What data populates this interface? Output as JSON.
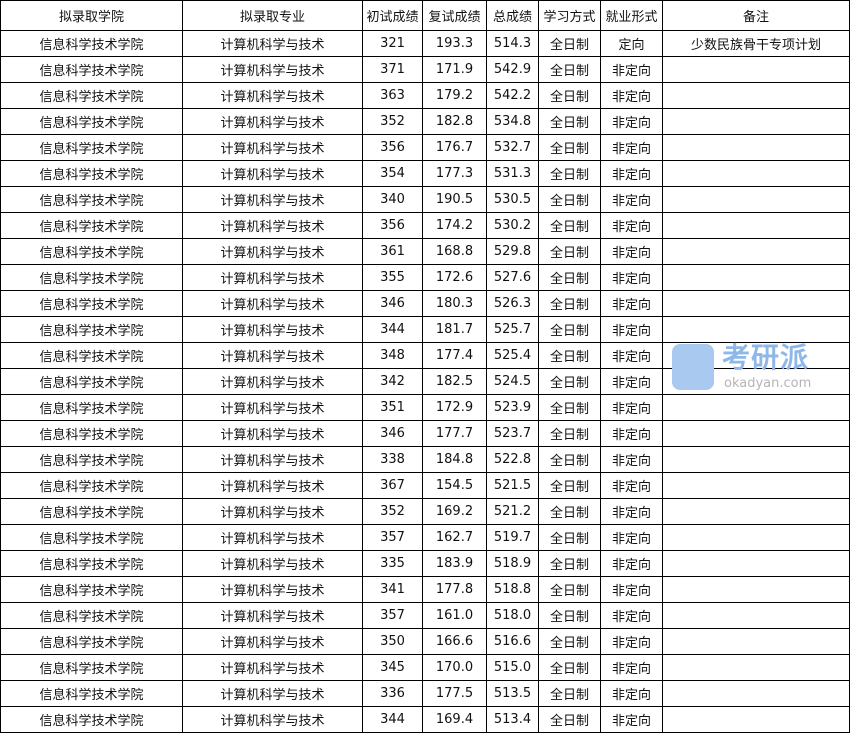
{
  "table": {
    "headers": [
      "拟录取学院",
      "拟录取专业",
      "初试成绩",
      "复试成绩",
      "总成绩",
      "学习方式",
      "就业形式",
      "备注"
    ],
    "rows": [
      [
        "信息科学技术学院",
        "计算机科学与技术",
        "321",
        "193.3",
        "514.3",
        "全日制",
        "定向",
        "少数民族骨干专项计划"
      ],
      [
        "信息科学技术学院",
        "计算机科学与技术",
        "371",
        "171.9",
        "542.9",
        "全日制",
        "非定向",
        ""
      ],
      [
        "信息科学技术学院",
        "计算机科学与技术",
        "363",
        "179.2",
        "542.2",
        "全日制",
        "非定向",
        ""
      ],
      [
        "信息科学技术学院",
        "计算机科学与技术",
        "352",
        "182.8",
        "534.8",
        "全日制",
        "非定向",
        ""
      ],
      [
        "信息科学技术学院",
        "计算机科学与技术",
        "356",
        "176.7",
        "532.7",
        "全日制",
        "非定向",
        ""
      ],
      [
        "信息科学技术学院",
        "计算机科学与技术",
        "354",
        "177.3",
        "531.3",
        "全日制",
        "非定向",
        ""
      ],
      [
        "信息科学技术学院",
        "计算机科学与技术",
        "340",
        "190.5",
        "530.5",
        "全日制",
        "非定向",
        ""
      ],
      [
        "信息科学技术学院",
        "计算机科学与技术",
        "356",
        "174.2",
        "530.2",
        "全日制",
        "非定向",
        ""
      ],
      [
        "信息科学技术学院",
        "计算机科学与技术",
        "361",
        "168.8",
        "529.8",
        "全日制",
        "非定向",
        ""
      ],
      [
        "信息科学技术学院",
        "计算机科学与技术",
        "355",
        "172.6",
        "527.6",
        "全日制",
        "非定向",
        ""
      ],
      [
        "信息科学技术学院",
        "计算机科学与技术",
        "346",
        "180.3",
        "526.3",
        "全日制",
        "非定向",
        ""
      ],
      [
        "信息科学技术学院",
        "计算机科学与技术",
        "344",
        "181.7",
        "525.7",
        "全日制",
        "非定向",
        ""
      ],
      [
        "信息科学技术学院",
        "计算机科学与技术",
        "348",
        "177.4",
        "525.4",
        "全日制",
        "非定向",
        ""
      ],
      [
        "信息科学技术学院",
        "计算机科学与技术",
        "342",
        "182.5",
        "524.5",
        "全日制",
        "非定向",
        ""
      ],
      [
        "信息科学技术学院",
        "计算机科学与技术",
        "351",
        "172.9",
        "523.9",
        "全日制",
        "非定向",
        ""
      ],
      [
        "信息科学技术学院",
        "计算机科学与技术",
        "346",
        "177.7",
        "523.7",
        "全日制",
        "非定向",
        ""
      ],
      [
        "信息科学技术学院",
        "计算机科学与技术",
        "338",
        "184.8",
        "522.8",
        "全日制",
        "非定向",
        ""
      ],
      [
        "信息科学技术学院",
        "计算机科学与技术",
        "367",
        "154.5",
        "521.5",
        "全日制",
        "非定向",
        ""
      ],
      [
        "信息科学技术学院",
        "计算机科学与技术",
        "352",
        "169.2",
        "521.2",
        "全日制",
        "非定向",
        ""
      ],
      [
        "信息科学技术学院",
        "计算机科学与技术",
        "357",
        "162.7",
        "519.7",
        "全日制",
        "非定向",
        ""
      ],
      [
        "信息科学技术学院",
        "计算机科学与技术",
        "335",
        "183.9",
        "518.9",
        "全日制",
        "非定向",
        ""
      ],
      [
        "信息科学技术学院",
        "计算机科学与技术",
        "341",
        "177.8",
        "518.8",
        "全日制",
        "非定向",
        ""
      ],
      [
        "信息科学技术学院",
        "计算机科学与技术",
        "357",
        "161.0",
        "518.0",
        "全日制",
        "非定向",
        ""
      ],
      [
        "信息科学技术学院",
        "计算机科学与技术",
        "350",
        "166.6",
        "516.6",
        "全日制",
        "非定向",
        ""
      ],
      [
        "信息科学技术学院",
        "计算机科学与技术",
        "345",
        "170.0",
        "515.0",
        "全日制",
        "非定向",
        ""
      ],
      [
        "信息科学技术学院",
        "计算机科学与技术",
        "336",
        "177.5",
        "513.5",
        "全日制",
        "非定向",
        ""
      ],
      [
        "信息科学技术学院",
        "计算机科学与技术",
        "344",
        "169.4",
        "513.4",
        "全日制",
        "非定向",
        ""
      ]
    ]
  },
  "watermark": {
    "brand": "考研派",
    "url": "okadyan.com"
  }
}
